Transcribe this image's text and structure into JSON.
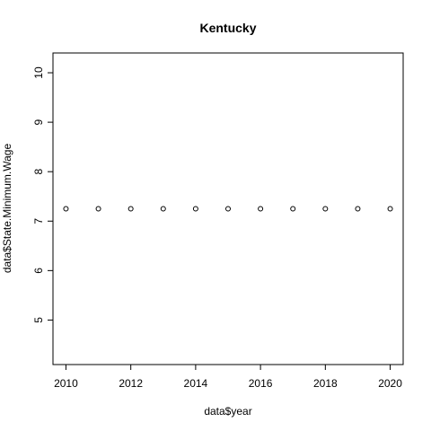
{
  "chart_data": {
    "type": "scatter",
    "title": "Kentucky",
    "xlabel": "data$year",
    "ylabel": "data$State.Minimum.Wage",
    "x": [
      2010,
      2011,
      2012,
      2013,
      2014,
      2015,
      2016,
      2017,
      2018,
      2019,
      2020
    ],
    "y": [
      7.25,
      7.25,
      7.25,
      7.25,
      7.25,
      7.25,
      7.25,
      7.25,
      7.25,
      7.25,
      7.25
    ],
    "xlim": [
      2009.6,
      2020.4
    ],
    "ylim": [
      4.1,
      10.4
    ],
    "xticks": [
      "2010",
      "2012",
      "2014",
      "2016",
      "2018",
      "2020"
    ],
    "yticks": [
      "5",
      "6",
      "7",
      "8",
      "9",
      "10"
    ],
    "marker": "open-circle",
    "grid": false,
    "colors": {
      "points": "#000000",
      "frame": "#000000"
    }
  }
}
